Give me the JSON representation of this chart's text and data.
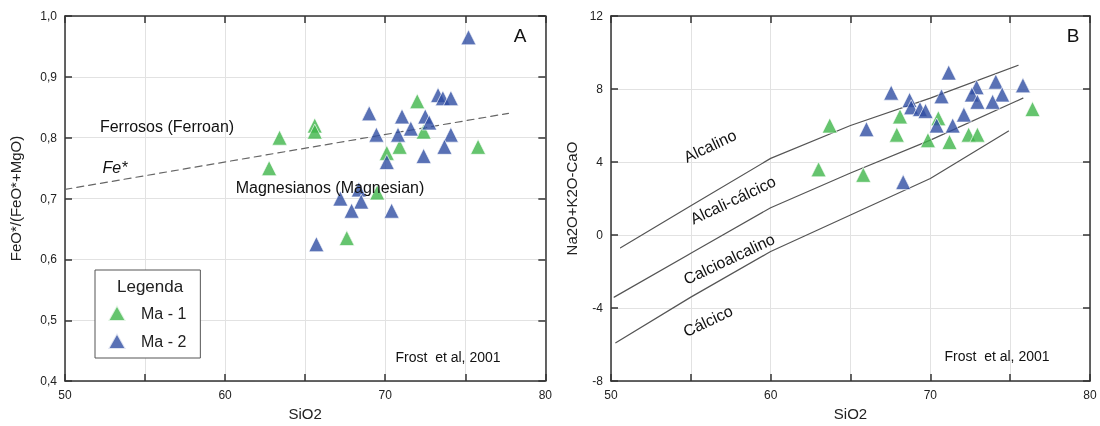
{
  "chart_data": [
    {
      "type": "scatter",
      "xlabel": "SiO2",
      "ylabel": "FeO*/(FeO*+MgO)",
      "legend_title": "Legenda",
      "legend": "bottom left",
      "grid": true,
      "marker": "triangle",
      "xlim": [
        50,
        80
      ],
      "xticks": [
        50,
        {
          "value": 55,
          "label": null
        },
        60,
        {
          "value": 65,
          "label": null
        },
        70,
        {
          "value": 75,
          "label": null
        },
        80
      ],
      "ylim": [
        0.4,
        1.0
      ],
      "yticks": [
        {
          "value": 0.4,
          "label": "0,4"
        },
        {
          "value": 0.5,
          "label": "0,5"
        },
        {
          "value": 0.6,
          "label": "0,6"
        },
        {
          "value": 0.7,
          "label": "0,7"
        },
        {
          "value": 0.8,
          "label": "0,8"
        },
        {
          "value": 0.9,
          "label": "0,9"
        },
        {
          "value": 1.0,
          "label": "1,0"
        }
      ],
      "series": [
        {
          "name": "Ma - 1",
          "color": "#3fb54a",
          "x": [
            62.75,
            63.4,
            65.6,
            65.6,
            67.6,
            69.5,
            70.1,
            70.9,
            72.0,
            72.4,
            75.8
          ],
          "values": [
            0.75,
            0.8,
            0.82,
            0.81,
            0.635,
            0.71,
            0.775,
            0.785,
            0.86,
            0.81,
            0.785
          ]
        },
        {
          "name": "Ma - 2",
          "color": "#2f4da3",
          "x": [
            75.2,
            69.0,
            69.45,
            71.05,
            70.8,
            71.6,
            72.5,
            72.75,
            73.3,
            73.6,
            74.1,
            74.1,
            73.7,
            72.4,
            70.1,
            68.35,
            67.2,
            68.5,
            67.9,
            70.4,
            65.7
          ],
          "values": [
            0.965,
            0.84,
            0.805,
            0.835,
            0.805,
            0.815,
            0.835,
            0.825,
            0.87,
            0.865,
            0.865,
            0.805,
            0.785,
            0.77,
            0.76,
            0.715,
            0.7,
            0.695,
            0.68,
            0.68,
            0.625
          ]
        },
        {
          "type": "line",
          "color": "#666666",
          "line_style": "dashed",
          "marker": "none",
          "x": [
            50,
            77.7
          ],
          "values": [
            0.715,
            0.84
          ]
        }
      ],
      "annotations": [
        "A",
        "Frost  et al, 2001",
        "Ferrosos (Ferroan)",
        "Fe*",
        "Magnesianos (Magnesian)"
      ]
    },
    {
      "type": "scatter",
      "xlabel": "SiO2",
      "ylabel": "Na2O+K2O-CaO",
      "grid": true,
      "marker": "triangle",
      "xlim": [
        50,
        80
      ],
      "xticks": [
        50,
        {
          "value": 55,
          "label": null
        },
        60,
        {
          "value": 65,
          "label": null
        },
        70,
        {
          "value": 75,
          "label": null
        },
        80
      ],
      "ylim": [
        -8,
        12
      ],
      "yticks": [
        -8,
        -4,
        0,
        4,
        8,
        12
      ],
      "series": [
        {
          "color": "#3fb54a",
          "x": [
            63.7,
            63.0,
            65.8,
            68.1,
            67.9,
            69.85,
            70.5,
            71.2,
            72.4,
            72.95,
            76.4
          ],
          "values": [
            6.0,
            3.6,
            3.3,
            6.5,
            5.5,
            5.2,
            6.4,
            5.1,
            5.5,
            5.5,
            6.9
          ]
        },
        {
          "color": "#2f4da3",
          "x": [
            71.15,
            67.55,
            68.7,
            68.8,
            69.35,
            69.7,
            70.7,
            72.1,
            71.4,
            70.4,
            72.9,
            72.6,
            72.95,
            74.1,
            74.5,
            73.9,
            75.8,
            66.0,
            68.3
          ],
          "values": [
            8.9,
            7.8,
            7.4,
            7.0,
            6.9,
            6.8,
            7.6,
            6.6,
            6.0,
            6.0,
            8.1,
            7.7,
            7.3,
            8.4,
            7.7,
            7.3,
            8.2,
            5.8,
            2.9
          ]
        },
        {
          "type": "line",
          "color": "#555555",
          "line_style": "solid",
          "marker": "none",
          "x": [
            50.6,
            55,
            60,
            65,
            70,
            75.5
          ],
          "values": [
            -0.7,
            1.6,
            4.2,
            6.0,
            7.5,
            9.3
          ]
        },
        {
          "type": "line",
          "color": "#555555",
          "line_style": "solid",
          "marker": "none",
          "x": [
            50.2,
            55,
            60,
            65,
            70,
            75.8
          ],
          "values": [
            -3.4,
            -1.0,
            1.5,
            3.4,
            5.2,
            7.5
          ]
        },
        {
          "type": "line",
          "color": "#555555",
          "line_style": "solid",
          "marker": "none",
          "x": [
            50.3,
            55,
            60,
            65,
            70,
            74.9
          ],
          "values": [
            -5.9,
            -3.4,
            -0.9,
            1.1,
            3.1,
            5.7
          ]
        }
      ],
      "annotations": [
        "B",
        "Frost  et al, 2001",
        "Alcalino",
        "Alcali-cálcico",
        "Calcioalcalino",
        "Cálcico"
      ]
    }
  ]
}
